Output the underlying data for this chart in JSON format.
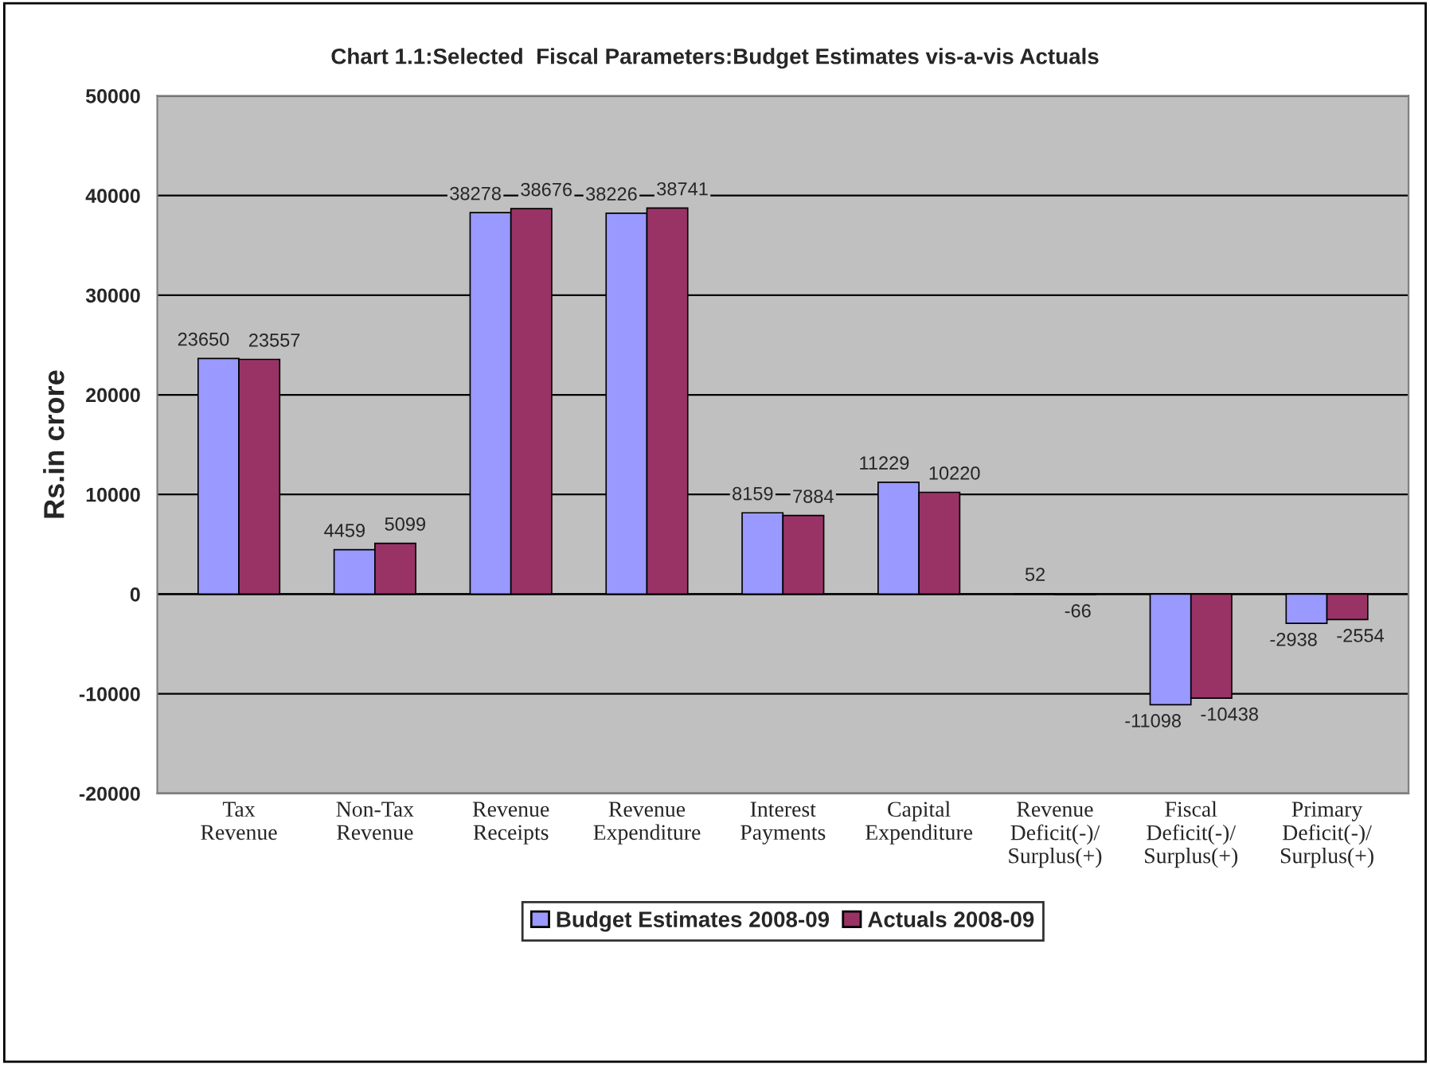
{
  "chart_data": {
    "type": "bar",
    "title": "Chart 1.1:Selected  Fiscal Parameters:Budget Estimates vis-a-vis Actuals",
    "ylabel": "Rs.in crore",
    "categories": [
      "Tax\nRevenue",
      "Non-Tax\nRevenue",
      "Revenue\nReceipts",
      "Revenue\nExpenditure",
      "Interest\nPayments",
      "Capital\nExpenditure",
      "Revenue\nDeficit(-)/\nSurplus(+)",
      "Fiscal\nDeficit(-)/\nSurplus(+)",
      "Primary\nDeficit(-)/\nSurplus(+)"
    ],
    "series": [
      {
        "name": "Budget Estimates 2008-09",
        "color": "#9999ff",
        "values": [
          23650,
          4459,
          38278,
          38226,
          8159,
          11229,
          52,
          -11098,
          -2938
        ]
      },
      {
        "name": "Actuals 2008-09",
        "color": "#993366",
        "values": [
          23557,
          5099,
          38676,
          38741,
          7884,
          10220,
          -66,
          -10438,
          -2554
        ]
      }
    ],
    "ylim": [
      -20000,
      50000
    ],
    "yticks": [
      -20000,
      -10000,
      0,
      10000,
      20000,
      30000,
      40000,
      50000
    ],
    "grid": "y",
    "legend": "bottom",
    "data_labels": true
  }
}
